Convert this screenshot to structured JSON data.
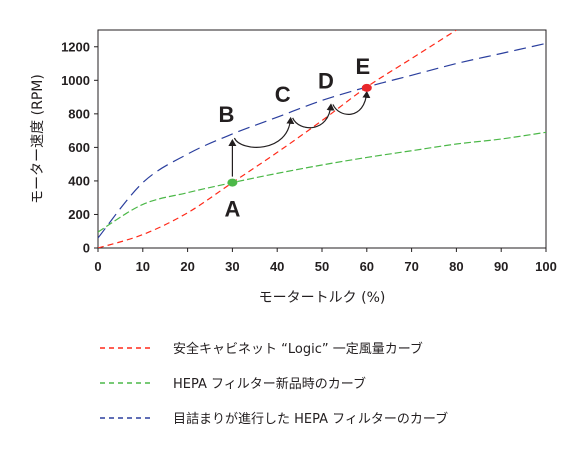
{
  "chart_data": {
    "type": "line",
    "xlabel": "モータートルク (%)",
    "ylabel": "モーター速度 (RPM)",
    "xlim": [
      0,
      100
    ],
    "ylim": [
      0,
      1300
    ],
    "x_ticks": [
      "0",
      "10",
      "20",
      "30",
      "40",
      "50",
      "60",
      "70",
      "80",
      "90",
      "100"
    ],
    "y_ticks": [
      "0",
      "200",
      "400",
      "600",
      "800",
      "1000",
      "1200"
    ],
    "series": [
      {
        "name": "安全キャビネット “Logic” 一定風量カーブ",
        "color": "#ff2a1a",
        "dash": "dashed",
        "x": [
          0,
          10,
          20,
          30,
          40,
          50,
          60,
          70,
          80
        ],
        "y": [
          0,
          80,
          210,
          390,
          570,
          760,
          960,
          1130,
          1300
        ]
      },
      {
        "name": "HEPA フィルター新品時のカーブ",
        "color": "#4cb848",
        "dash": "dashed",
        "x": [
          0,
          10,
          20,
          30,
          40,
          50,
          60,
          70,
          80,
          90,
          100
        ],
        "y": [
          95,
          260,
          330,
          390,
          445,
          495,
          540,
          580,
          620,
          650,
          690
        ]
      },
      {
        "name": "目詰まりが進行した HEPA フィルターのカーブ",
        "color": "#2b3f9e",
        "dash": "dashed",
        "x": [
          0,
          10,
          20,
          30,
          40,
          50,
          60,
          70,
          80,
          90,
          100
        ],
        "y": [
          60,
          390,
          560,
          680,
          780,
          880,
          960,
          1030,
          1100,
          1160,
          1220
        ]
      }
    ],
    "points": [
      {
        "label": "A",
        "x": 30,
        "y": 390,
        "color": "#4cb848"
      },
      {
        "label": "B",
        "x": 30,
        "y": 680
      },
      {
        "label": "C",
        "x": 43,
        "y": 800
      },
      {
        "label": "D",
        "x": 52,
        "y": 880
      },
      {
        "label": "E",
        "x": 60,
        "y": 955,
        "color": "#e8262b"
      }
    ]
  }
}
